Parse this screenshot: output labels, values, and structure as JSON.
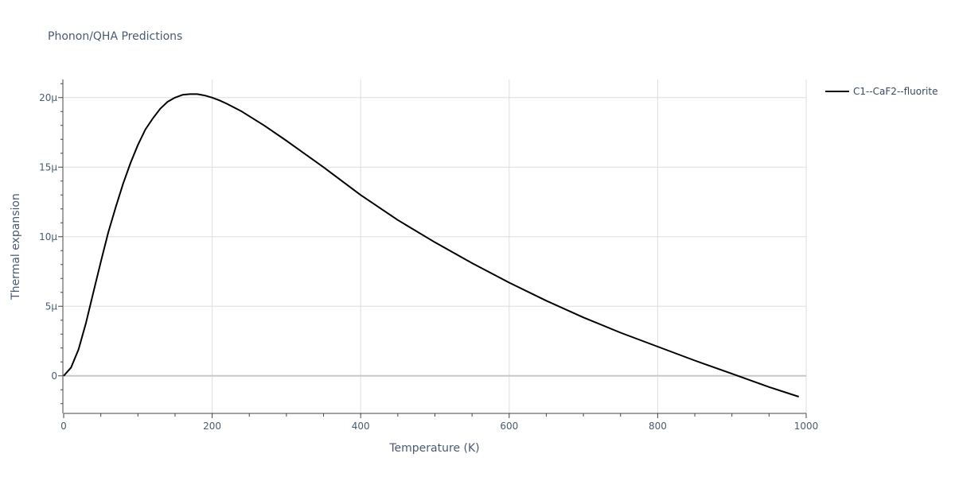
{
  "chart_data": {
    "type": "line",
    "title": "Phonon/QHA Predictions",
    "xlabel": "Temperature (K)",
    "ylabel": "Thermal expansion",
    "xlim": [
      0,
      1000
    ],
    "ylim": [
      -2.7,
      21.3
    ],
    "y_units": "1e-6",
    "grid": true,
    "legend_position": "top-right, outside plot",
    "x_ticks": [
      {
        "value": 0,
        "label": "0"
      },
      {
        "value": 200,
        "label": "200"
      },
      {
        "value": 400,
        "label": "400"
      },
      {
        "value": 600,
        "label": "600"
      },
      {
        "value": 800,
        "label": "800"
      },
      {
        "value": 1000,
        "label": "1000"
      }
    ],
    "y_ticks": [
      {
        "value": 0,
        "label": "0"
      },
      {
        "value": 5,
        "label": "5μ"
      },
      {
        "value": 10,
        "label": "10μ"
      },
      {
        "value": 15,
        "label": "15μ"
      },
      {
        "value": 20,
        "label": "20μ"
      }
    ],
    "series": [
      {
        "name": "C1--CaF2--fluorite",
        "color": "#000000",
        "x": [
          0,
          10,
          20,
          30,
          40,
          50,
          60,
          70,
          80,
          90,
          100,
          110,
          120,
          130,
          140,
          150,
          160,
          170,
          180,
          190,
          200,
          210,
          220,
          240,
          270,
          300,
          350,
          400,
          450,
          500,
          550,
          600,
          650,
          700,
          750,
          800,
          850,
          900,
          950,
          990
        ],
        "y": [
          0,
          0.6,
          1.9,
          3.8,
          6.0,
          8.2,
          10.3,
          12.1,
          13.8,
          15.3,
          16.6,
          17.7,
          18.5,
          19.2,
          19.7,
          20.0,
          20.2,
          20.25,
          20.25,
          20.15,
          20.0,
          19.8,
          19.55,
          19.0,
          18.0,
          16.9,
          15.0,
          13.0,
          11.2,
          9.6,
          8.1,
          6.7,
          5.4,
          4.2,
          3.1,
          2.1,
          1.1,
          0.15,
          -0.8,
          -1.5
        ]
      }
    ]
  }
}
